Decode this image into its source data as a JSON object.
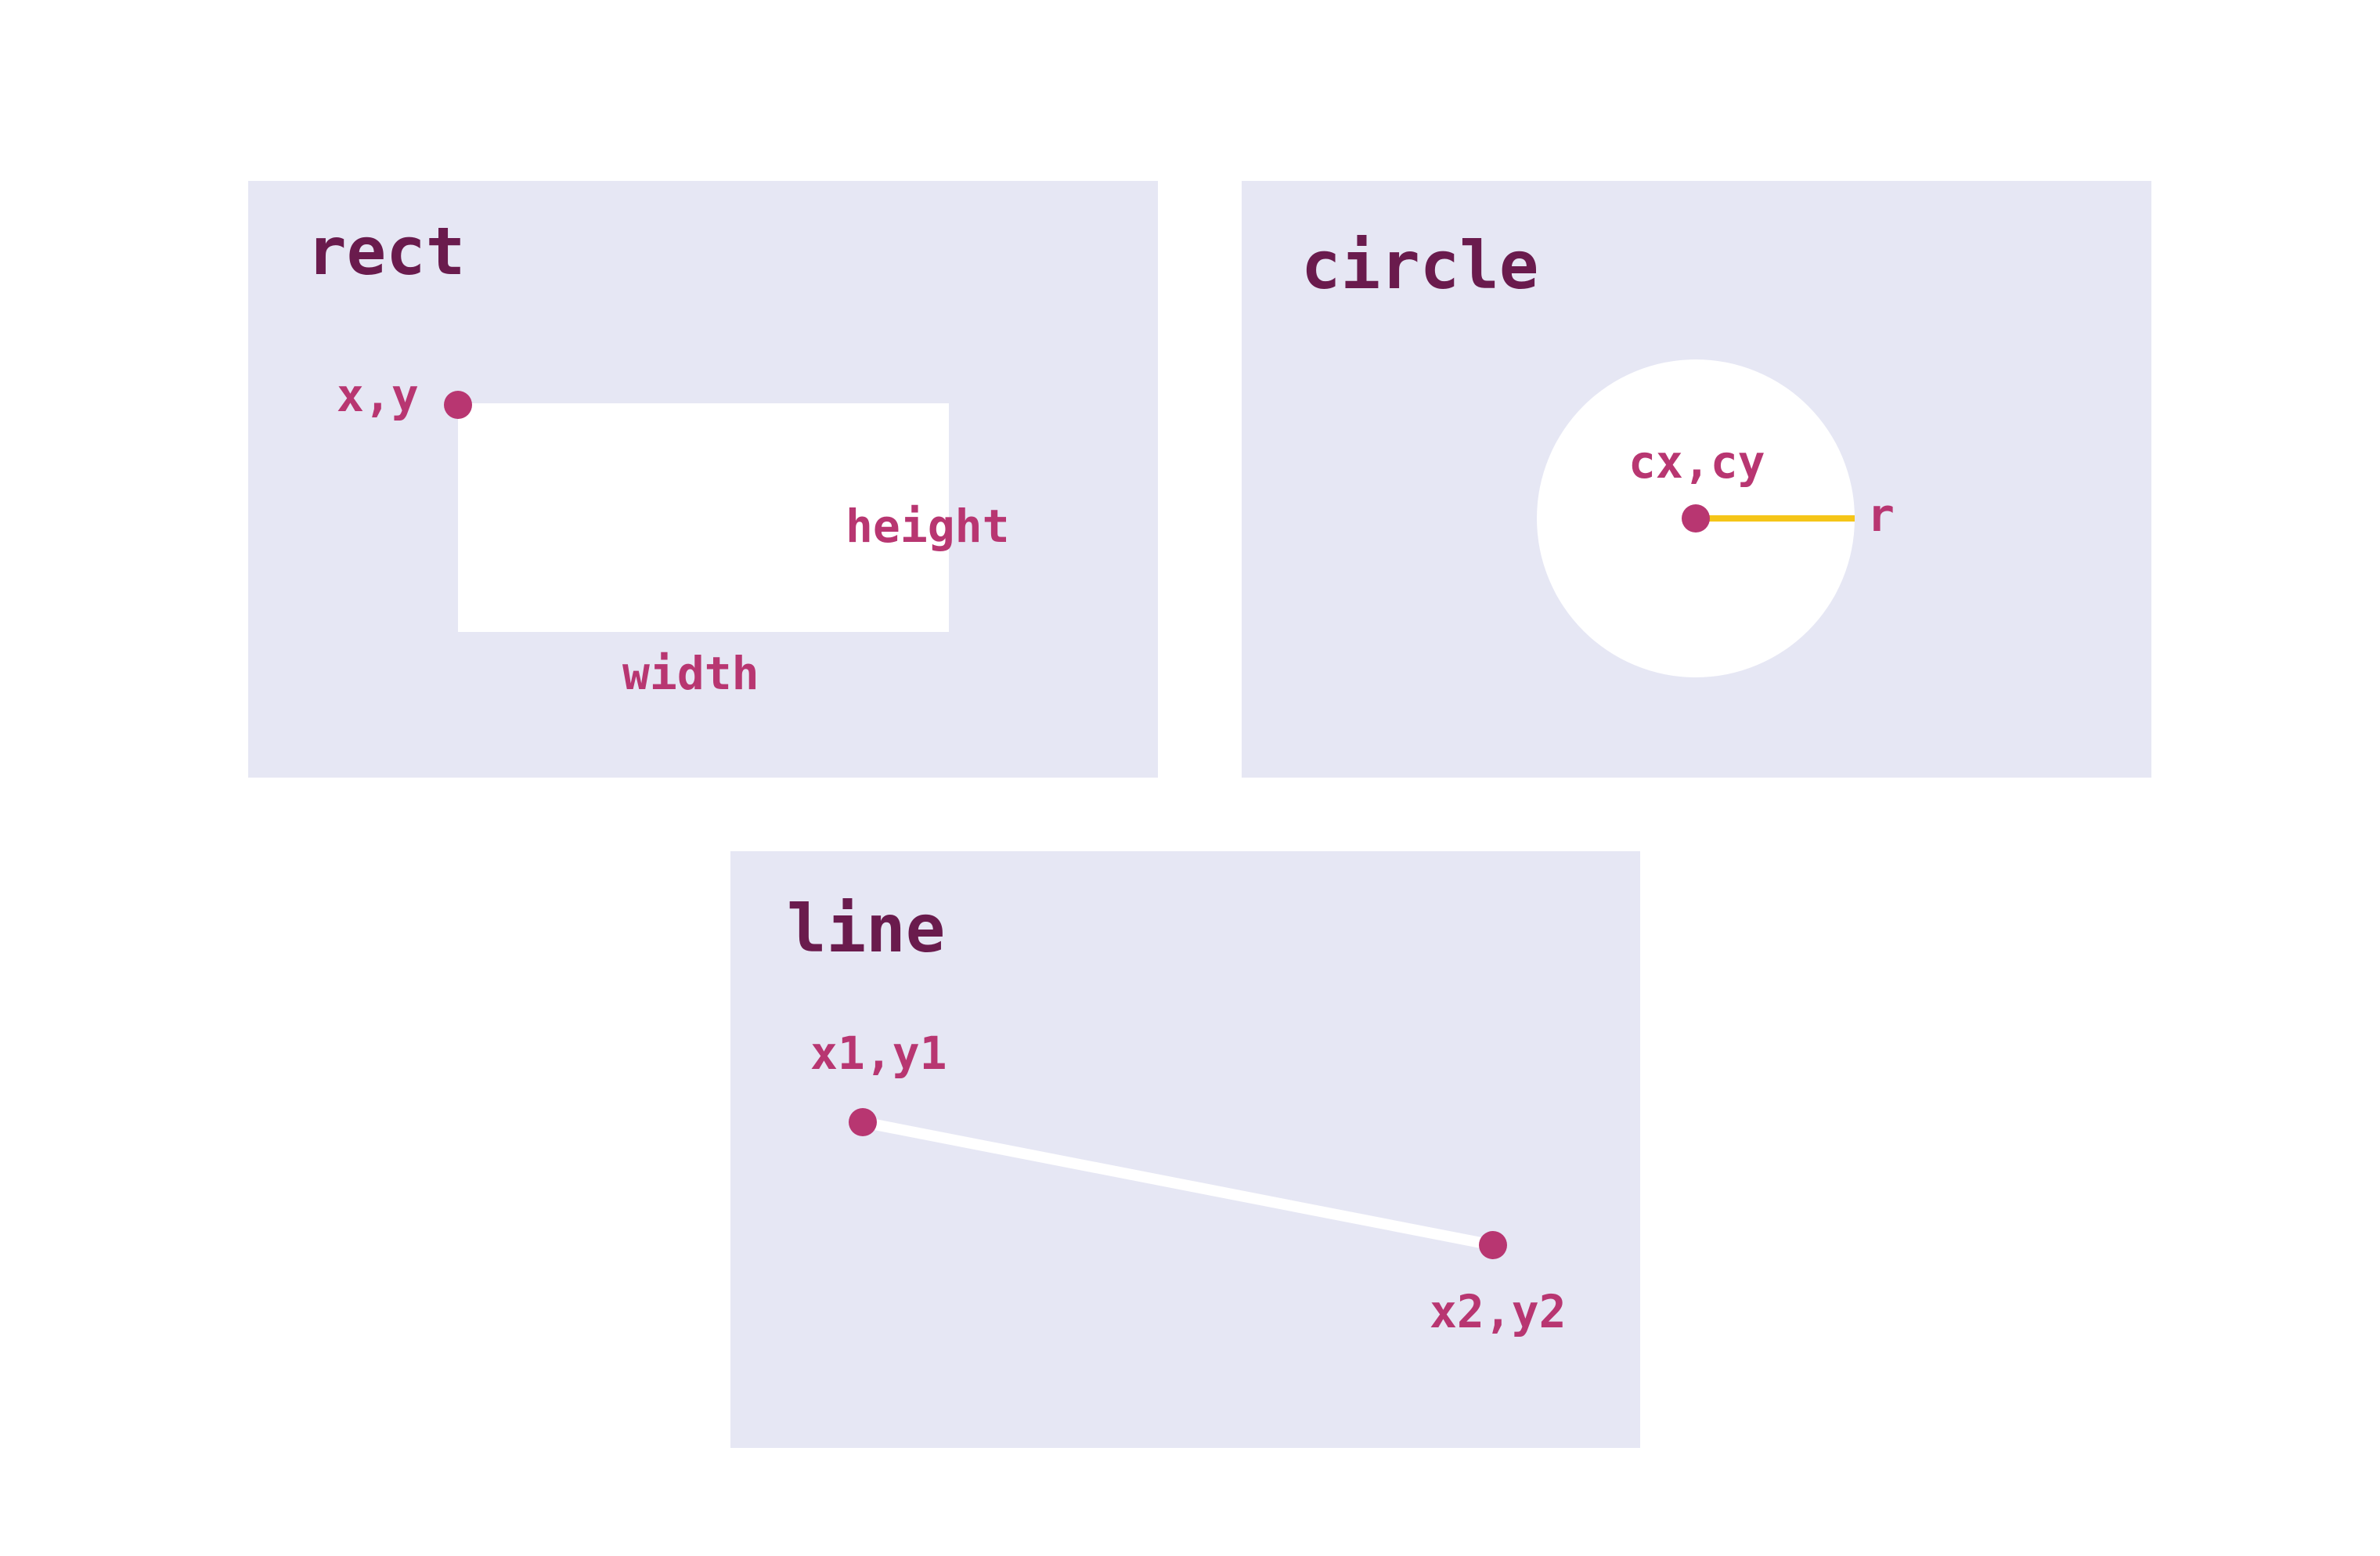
{
  "panels": {
    "rect": {
      "title": "rect",
      "labels": {
        "origin": "x,y",
        "height": "height",
        "width": "width"
      }
    },
    "circle": {
      "title": "circle",
      "labels": {
        "center": "cx,cy",
        "radius": "r"
      }
    },
    "line": {
      "title": "line",
      "labels": {
        "start": "x1,y1",
        "end": "x2,y2"
      }
    }
  },
  "colors": {
    "panel_background": "#e6e7f4",
    "shape_fill": "#ffffff",
    "point": "#b83671",
    "title": "#6a1b4d",
    "label": "#b83671",
    "radius_line": "#f5c518"
  }
}
